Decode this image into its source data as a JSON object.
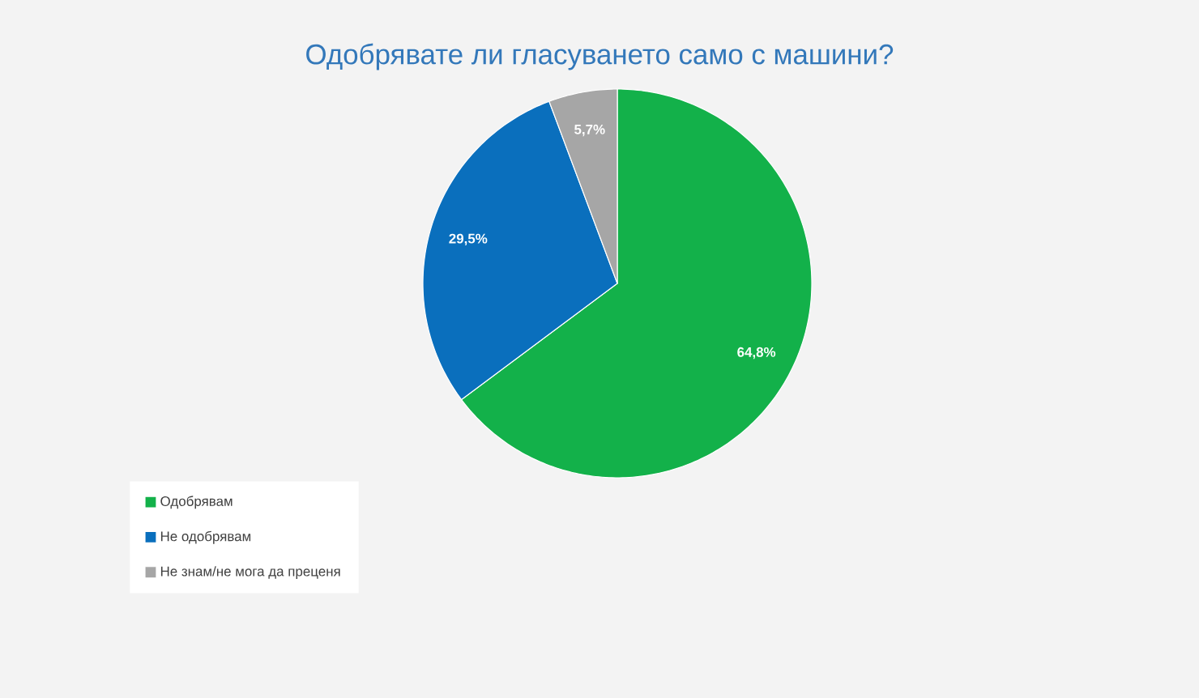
{
  "chart_data": {
    "type": "pie",
    "title": "Одобрявате ли гласуването само с машини?",
    "categories": [
      "Одобрявам",
      "Не одобрявам",
      "Не знам/не мога да преценя"
    ],
    "values": [
      64.8,
      29.5,
      5.7
    ],
    "value_labels": [
      "64,8%",
      "29,5%",
      "5,7%"
    ],
    "colors": [
      "#13b14a",
      "#0a6fbd",
      "#a6a6a6"
    ],
    "legend": "bottom left"
  }
}
